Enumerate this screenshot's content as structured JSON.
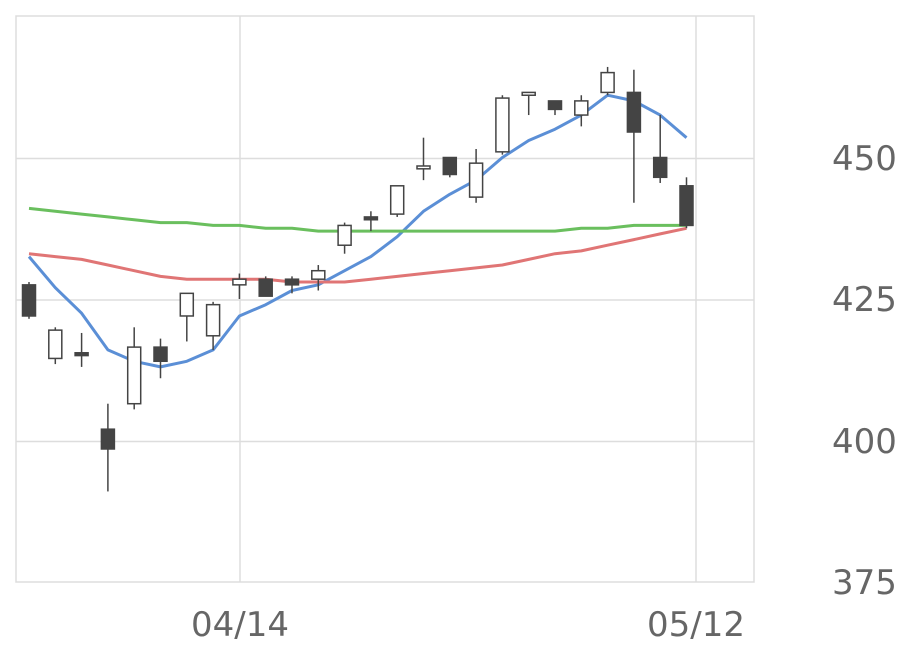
{
  "chart_data": {
    "type": "candlestick",
    "y_ticks": [
      "450",
      "425",
      "400",
      "375"
    ],
    "x_ticks": [
      "04/14",
      "05/12"
    ],
    "ylim": [
      375,
      475
    ],
    "grid": true,
    "colors": {
      "up_fill": "#ffffff",
      "down_fill": "#444444",
      "candle_line": "#444444",
      "grid": "#dddddd",
      "ma_short": "#5b8fd6",
      "ma_mid": "#e07575",
      "ma_long": "#6abf5e"
    },
    "candles": [
      {
        "o": 427.5,
        "h": 428.0,
        "l": 421.5,
        "c": 422.0
      },
      {
        "o": 414.5,
        "h": 420.0,
        "l": 413.5,
        "c": 419.5
      },
      {
        "o": 415.5,
        "h": 419.0,
        "l": 413.0,
        "c": 415.0
      },
      {
        "o": 402.0,
        "h": 406.5,
        "l": 391.0,
        "c": 398.5
      },
      {
        "o": 406.5,
        "h": 420.0,
        "l": 405.5,
        "c": 416.5
      },
      {
        "o": 416.5,
        "h": 418.0,
        "l": 411.0,
        "c": 414.0
      },
      {
        "o": 422.0,
        "h": 426.0,
        "l": 417.5,
        "c": 426.0
      },
      {
        "o": 418.5,
        "h": 424.5,
        "l": 416.0,
        "c": 424.0
      },
      {
        "o": 427.5,
        "h": 429.5,
        "l": 425.0,
        "c": 428.5
      },
      {
        "o": 428.5,
        "h": 429.0,
        "l": 425.5,
        "c": 425.5
      },
      {
        "o": 428.5,
        "h": 429.0,
        "l": 426.0,
        "c": 427.5
      },
      {
        "o": 428.5,
        "h": 431.0,
        "l": 426.5,
        "c": 430.0
      },
      {
        "o": 434.5,
        "h": 438.5,
        "l": 433.0,
        "c": 438.0
      },
      {
        "o": 439.5,
        "h": 440.5,
        "l": 437.0,
        "c": 439.0
      },
      {
        "o": 440.0,
        "h": 445.0,
        "l": 439.5,
        "c": 445.0
      },
      {
        "o": 448.0,
        "h": 453.5,
        "l": 446.0,
        "c": 448.5
      },
      {
        "o": 450.0,
        "h": 450.0,
        "l": 446.5,
        "c": 447.0
      },
      {
        "o": 443.0,
        "h": 451.5,
        "l": 442.0,
        "c": 449.0
      },
      {
        "o": 451.0,
        "h": 461.0,
        "l": 450.5,
        "c": 460.5
      },
      {
        "o": 461.0,
        "h": 461.5,
        "l": 457.5,
        "c": 461.5
      },
      {
        "o": 460.0,
        "h": 460.0,
        "l": 457.5,
        "c": 458.5
      },
      {
        "o": 457.5,
        "h": 461.0,
        "l": 455.5,
        "c": 460.0
      },
      {
        "o": 461.5,
        "h": 466.0,
        "l": 461.0,
        "c": 465.0
      },
      {
        "o": 461.5,
        "h": 465.5,
        "l": 442.0,
        "c": 454.5
      },
      {
        "o": 450.0,
        "h": 457.5,
        "l": 445.5,
        "c": 446.5
      },
      {
        "o": 445.0,
        "h": 446.5,
        "l": 437.5,
        "c": 438.0
      }
    ],
    "series": [
      {
        "key": "ma_short",
        "values": [
          432.5,
          427.0,
          422.5,
          416.0,
          414.0,
          413.0,
          414.0,
          416.0,
          422.0,
          424.0,
          426.5,
          427.5,
          430.0,
          432.5,
          436.0,
          440.5,
          443.5,
          446.0,
          450.0,
          453.0,
          455.0,
          457.5,
          461.0,
          460.0,
          457.5,
          453.5
        ]
      },
      {
        "key": "ma_mid",
        "values": [
          433.0,
          432.5,
          432.0,
          431.0,
          430.0,
          429.0,
          428.5,
          428.5,
          428.5,
          428.5,
          428.0,
          428.0,
          428.0,
          428.5,
          429.0,
          429.5,
          430.0,
          430.5,
          431.0,
          432.0,
          433.0,
          433.5,
          434.5,
          435.5,
          436.5,
          437.5
        ]
      },
      {
        "key": "ma_long",
        "values": [
          441.0,
          440.5,
          440.0,
          439.5,
          439.0,
          438.5,
          438.5,
          438.0,
          438.0,
          437.5,
          437.5,
          437.0,
          437.0,
          437.0,
          437.0,
          437.0,
          437.0,
          437.0,
          437.0,
          437.0,
          437.0,
          437.5,
          437.5,
          438.0,
          438.0,
          438.0
        ]
      }
    ]
  }
}
